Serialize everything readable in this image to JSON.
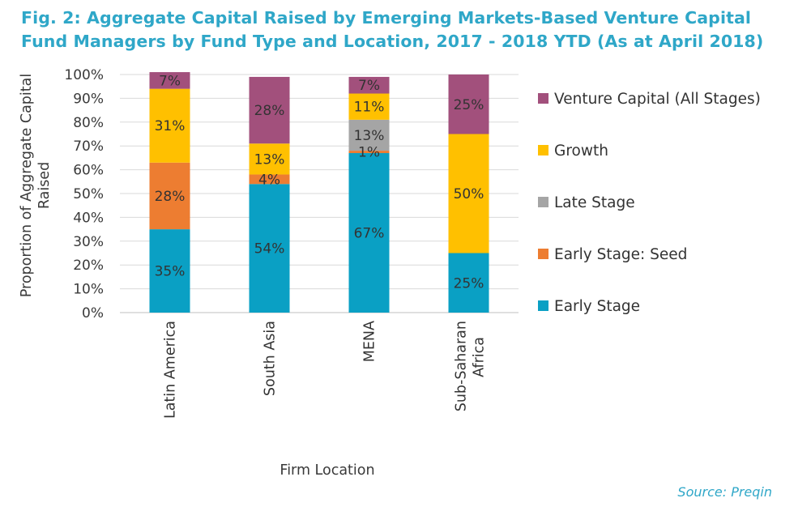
{
  "chart_data": {
    "type": "bar",
    "stacked": true,
    "title": "Fig. 2: Aggregate Capital Raised by Emerging Markets-Based Venture Capital Fund Managers by Fund Type and Location, 2017 - 2018 YTD (As at April 2018)",
    "xlabel": "Firm Location",
    "ylabel": "Proportion of Aggregate Capital Raised",
    "ylim": [
      0,
      100
    ],
    "yticks": [
      "0%",
      "10%",
      "20%",
      "30%",
      "40%",
      "50%",
      "60%",
      "70%",
      "80%",
      "90%",
      "100%"
    ],
    "categories": [
      "Latin America",
      "South Asia",
      "MENA",
      "Sub-Saharan Africa"
    ],
    "grid": true,
    "legend_position": "right",
    "series": [
      {
        "name": "Early Stage",
        "color": "#0aa0c4",
        "values": [
          35,
          54,
          67,
          25
        ],
        "labels": [
          "35%",
          "54%",
          "67%",
          "25%"
        ]
      },
      {
        "name": "Early Stage: Seed",
        "color": "#ed7d31",
        "values": [
          28,
          4,
          1,
          0
        ],
        "labels": [
          "28%",
          "4%",
          "1%",
          ""
        ]
      },
      {
        "name": "Late Stage",
        "color": "#a5a5a5",
        "values": [
          0,
          0,
          13,
          0
        ],
        "labels": [
          "",
          "",
          "13%",
          ""
        ]
      },
      {
        "name": "Growth",
        "color": "#ffc000",
        "values": [
          31,
          13,
          11,
          50
        ],
        "labels": [
          "31%",
          "13%",
          "11%",
          "50%"
        ]
      },
      {
        "name": "Venture Capital (All Stages)",
        "color": "#a2507c",
        "values": [
          7,
          28,
          7,
          25
        ],
        "labels": [
          "7%",
          "28%",
          "7%",
          "25%"
        ]
      }
    ],
    "legend_order": [
      "Venture Capital (All Stages)",
      "Growth",
      "Late Stage",
      "Early Stage: Seed",
      "Early Stage"
    ]
  },
  "source": "Source: Preqin"
}
